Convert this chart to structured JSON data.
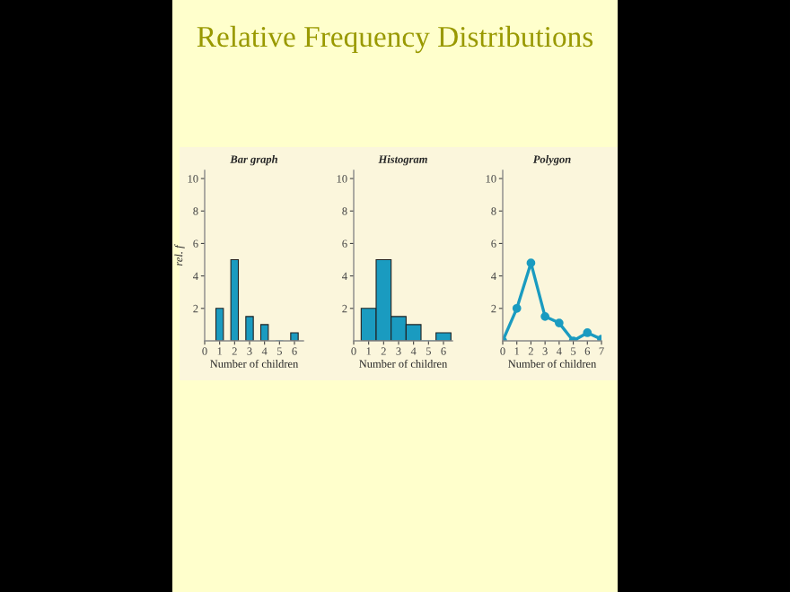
{
  "chart_data": [
    {
      "type": "bar",
      "subtitle": "Relative Frequency Distributions",
      "title": "Bar graph",
      "xlabel": "Number of children",
      "ylabel": "rel. f",
      "x": [
        1,
        2,
        3,
        4,
        5,
        6
      ],
      "values": [
        2,
        5,
        1.5,
        1,
        0,
        0.5
      ],
      "color": "#1a9bc0",
      "xlim": [
        0,
        6.6
      ],
      "xticks": [
        0,
        1,
        2,
        3,
        4,
        5,
        6
      ],
      "ylim": [
        0,
        10.5
      ],
      "yticks": [
        2,
        4,
        6,
        8,
        10
      ],
      "grid": false,
      "legend": false
    },
    {
      "type": "histogram",
      "title": "Histogram",
      "xlabel": "Number of children",
      "bins": [
        0.5,
        1.5,
        2.5,
        3.5,
        4.5,
        5.5,
        6.5
      ],
      "values": [
        2,
        5,
        1.5,
        1,
        0,
        0.5
      ],
      "color": "#1a9bc0",
      "xlim": [
        0,
        6.6
      ],
      "xticks": [
        0,
        1,
        2,
        3,
        4,
        5,
        6
      ],
      "ylim": [
        0,
        10.5
      ],
      "yticks": [
        2,
        4,
        6,
        8,
        10
      ],
      "grid": false,
      "legend": false
    },
    {
      "type": "line",
      "title": "Polygon",
      "xlabel": "Number of children",
      "x": [
        0,
        1,
        2,
        3,
        4,
        5,
        6,
        7
      ],
      "values": [
        0,
        2,
        4.8,
        1.5,
        1.1,
        0,
        0.5,
        0.1
      ],
      "color": "#1a9bc0",
      "marker": "circle",
      "line_style": "solid",
      "xlim": [
        0,
        7
      ],
      "xticks": [
        0,
        1,
        2,
        3,
        4,
        5,
        6,
        7
      ],
      "ylim": [
        0,
        10.5
      ],
      "yticks": [
        2,
        4,
        6,
        8,
        10
      ],
      "grid": false,
      "legend": false
    }
  ]
}
